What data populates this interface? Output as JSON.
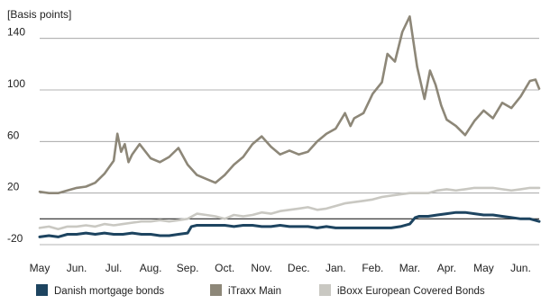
{
  "chart_data": {
    "type": "line",
    "ylabel": "[Basis points]",
    "ylim": [
      -20,
      160
    ],
    "y_ticks": [
      140,
      100,
      60,
      20,
      -20
    ],
    "y_tick_labels": [
      "140",
      "100",
      "60",
      "20",
      "-20"
    ],
    "xlim": [
      0,
      13.5
    ],
    "x_ticks": [
      0,
      1,
      2,
      3,
      4,
      5,
      6,
      7,
      8,
      9,
      10,
      11,
      12,
      13
    ],
    "x_tick_labels": [
      "May",
      "Jun.",
      "Jul.",
      "Aug.",
      "Sep.",
      "Oct.",
      "Nov.",
      "Dec.",
      "Jan.",
      "Feb.",
      "Mar.",
      "Apr.",
      "May",
      "Jun."
    ],
    "grid": true,
    "legend_position": "bottom",
    "series": [
      {
        "name": "Danish mortgage bonds",
        "color": "#1d4460",
        "x": [
          0,
          0.25,
          0.5,
          0.75,
          1,
          1.25,
          1.5,
          1.75,
          2,
          2.25,
          2.5,
          2.75,
          3,
          3.25,
          3.5,
          3.75,
          4,
          4.1,
          4.25,
          4.5,
          4.75,
          5,
          5.25,
          5.5,
          5.75,
          6,
          6.25,
          6.5,
          6.75,
          7,
          7.25,
          7.5,
          7.75,
          8,
          8.25,
          8.5,
          8.75,
          9,
          9.25,
          9.5,
          9.75,
          10,
          10.15,
          10.25,
          10.5,
          10.75,
          11,
          11.25,
          11.5,
          11.75,
          12,
          12.25,
          12.5,
          12.75,
          13,
          13.25,
          13.5
        ],
        "values": [
          -14,
          -13,
          -14,
          -12,
          -12,
          -11,
          -12,
          -11,
          -12,
          -12,
          -11,
          -12,
          -12,
          -13,
          -13,
          -12,
          -11,
          -6,
          -5,
          -5,
          -5,
          -5,
          -6,
          -5,
          -5,
          -6,
          -6,
          -5,
          -6,
          -6,
          -6,
          -7,
          -6,
          -7,
          -7,
          -7,
          -7,
          -7,
          -7,
          -7,
          -6,
          -4,
          1,
          2,
          2,
          3,
          4,
          5,
          5,
          4,
          3,
          3,
          2,
          1,
          0,
          0,
          -2
        ]
      },
      {
        "name": "iTraxx Main",
        "color": "#8d8778",
        "x": [
          0,
          0.25,
          0.5,
          0.75,
          1,
          1.25,
          1.5,
          1.75,
          2,
          2.1,
          2.2,
          2.3,
          2.4,
          2.5,
          2.7,
          3,
          3.25,
          3.5,
          3.75,
          4,
          4.25,
          4.5,
          4.75,
          5,
          5.25,
          5.5,
          5.75,
          6,
          6.25,
          6.5,
          6.75,
          7,
          7.25,
          7.5,
          7.75,
          8,
          8.25,
          8.4,
          8.5,
          8.75,
          9,
          9.25,
          9.4,
          9.6,
          9.8,
          10,
          10.2,
          10.4,
          10.55,
          10.7,
          10.85,
          11,
          11.25,
          11.5,
          11.75,
          12,
          12.25,
          12.5,
          12.75,
          13,
          13.25,
          13.4,
          13.5
        ],
        "values": [
          21,
          20,
          20,
          22,
          24,
          25,
          28,
          35,
          45,
          66,
          52,
          58,
          44,
          50,
          58,
          47,
          44,
          48,
          55,
          42,
          34,
          31,
          28,
          34,
          42,
          48,
          58,
          64,
          56,
          50,
          53,
          50,
          52,
          60,
          66,
          70,
          82,
          72,
          78,
          82,
          97,
          106,
          128,
          122,
          145,
          157,
          118,
          93,
          115,
          104,
          88,
          77,
          72,
          65,
          76,
          84,
          78,
          90,
          86,
          95,
          107,
          108,
          101
        ]
      },
      {
        "name": "iBoxx European Covered Bonds",
        "color": "#c9c8c2",
        "x": [
          0,
          0.25,
          0.5,
          0.75,
          1,
          1.25,
          1.5,
          1.75,
          2,
          2.25,
          2.5,
          2.75,
          3,
          3.25,
          3.5,
          3.75,
          4,
          4.25,
          4.5,
          4.75,
          5,
          5.25,
          5.5,
          5.75,
          6,
          6.25,
          6.5,
          6.75,
          7,
          7.25,
          7.5,
          7.75,
          8,
          8.25,
          8.5,
          8.75,
          9,
          9.25,
          9.5,
          9.75,
          10,
          10.25,
          10.5,
          10.75,
          11,
          11.25,
          11.5,
          11.75,
          12,
          12.25,
          12.5,
          12.75,
          13,
          13.25,
          13.5
        ],
        "values": [
          -7,
          -6,
          -8,
          -6,
          -6,
          -5,
          -6,
          -4,
          -5,
          -4,
          -3,
          -2,
          -2,
          -1,
          -2,
          -1,
          0,
          4,
          3,
          2,
          0,
          3,
          2,
          3,
          5,
          4,
          6,
          7,
          8,
          9,
          7,
          8,
          10,
          12,
          13,
          14,
          15,
          17,
          18,
          19,
          20,
          20,
          20,
          22,
          23,
          22,
          23,
          24,
          24,
          24,
          23,
          22,
          23,
          24,
          24
        ]
      }
    ]
  }
}
